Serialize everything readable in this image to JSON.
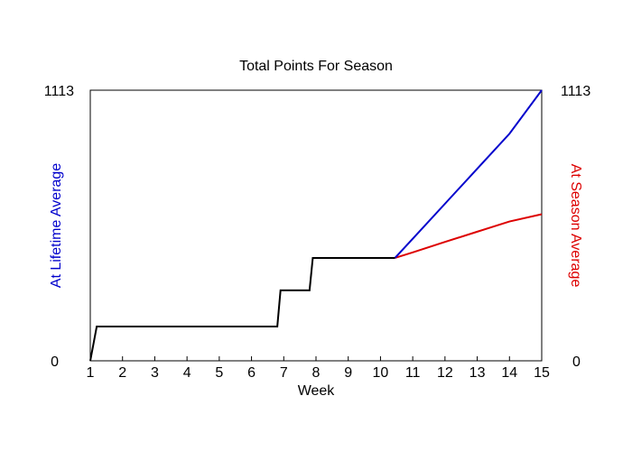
{
  "chart_data": {
    "type": "line",
    "title": "Total Points For Season",
    "xlabel": "Week",
    "ylabel_left": "At Lifetime Average",
    "ylabel_right": "At Season Average",
    "xlim": [
      1,
      15
    ],
    "ylim": [
      0,
      1113
    ],
    "x_ticks": [
      1,
      2,
      3,
      4,
      5,
      6,
      7,
      8,
      9,
      10,
      11,
      12,
      13,
      14,
      15
    ],
    "y_tick_labels": [
      "0",
      "1113"
    ],
    "grid": false,
    "colors": {
      "actual": "#000000",
      "lifetime": "#0000cc",
      "season": "#dd0000",
      "ylabel_left": "#0000cc",
      "ylabel_right": "#dd0000"
    },
    "series": [
      {
        "key": "actual",
        "x": [
          1,
          1.2,
          6.8,
          6.9,
          7.8,
          7.9,
          10.45
        ],
        "y": [
          0,
          141,
          141,
          290,
          290,
          423,
          423
        ]
      },
      {
        "key": "lifetime",
        "x": [
          10.45,
          11,
          12,
          13,
          14,
          15
        ],
        "y": [
          423,
          502,
          646,
          790,
          934,
          1113
        ]
      },
      {
        "key": "season",
        "x": [
          10.45,
          11,
          12,
          13,
          14,
          15
        ],
        "y": [
          423,
          446,
          489,
          531,
          573,
          603
        ]
      }
    ]
  }
}
